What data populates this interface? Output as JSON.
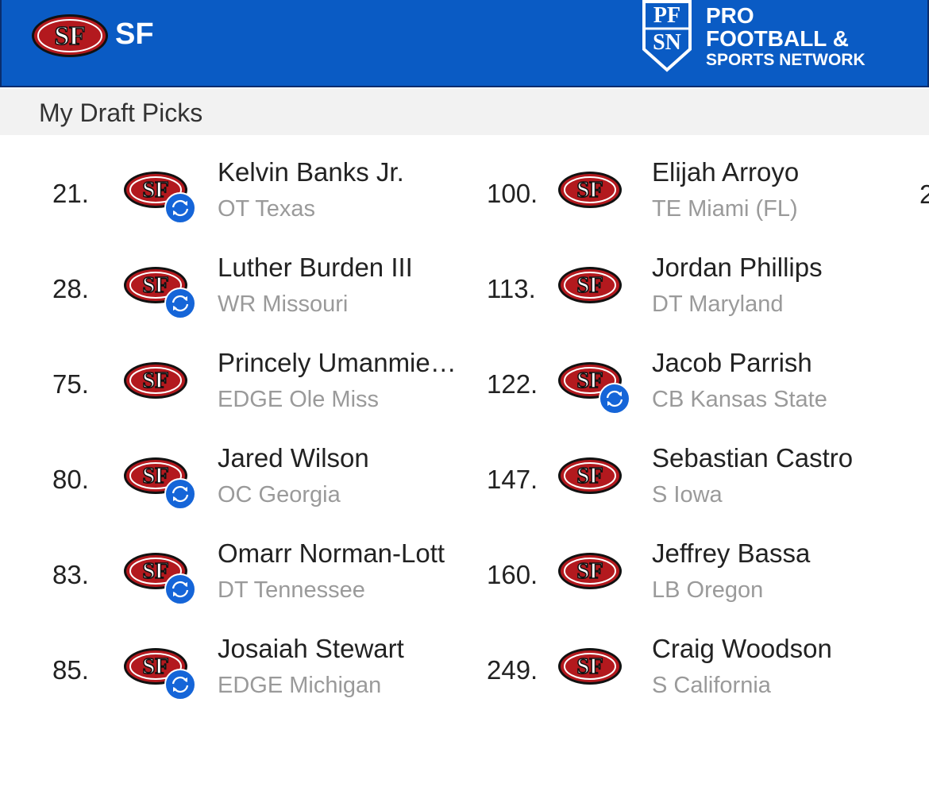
{
  "header": {
    "team": "SF",
    "logo_text": "SF",
    "brand": {
      "logo": [
        "PF",
        "SN"
      ],
      "lines": [
        "PRO",
        "FOOTBALL &",
        "SPORTS NETWORK"
      ]
    }
  },
  "section_title": "My Draft Picks",
  "columns": [
    [
      {
        "pick": "21.",
        "name": "Kelvin Banks Jr.",
        "detail": "OT Texas",
        "traded": true
      },
      {
        "pick": "28.",
        "name": "Luther Burden III",
        "detail": "WR Missouri",
        "traded": true
      },
      {
        "pick": "75.",
        "name": "Princely Umanmie…",
        "detail": "EDGE Ole Miss",
        "traded": false
      },
      {
        "pick": "80.",
        "name": "Jared Wilson",
        "detail": "OC Georgia",
        "traded": true
      },
      {
        "pick": "83.",
        "name": "Omarr Norman-Lott",
        "detail": "DT Tennessee",
        "traded": true
      },
      {
        "pick": "85.",
        "name": "Josaiah Stewart",
        "detail": "EDGE Michigan",
        "traded": true
      }
    ],
    [
      {
        "pick": "100.",
        "name": "Elijah Arroyo",
        "detail": "TE Miami (FL)",
        "traded": false
      },
      {
        "pick": "113.",
        "name": "Jordan Phillips",
        "detail": "DT Maryland",
        "traded": false
      },
      {
        "pick": "122.",
        "name": "Jacob Parrish",
        "detail": "CB Kansas State",
        "traded": true
      },
      {
        "pick": "147.",
        "name": "Sebastian Castro",
        "detail": "S Iowa",
        "traded": false
      },
      {
        "pick": "160.",
        "name": "Jeffrey Bassa",
        "detail": "LB Oregon",
        "traded": false
      },
      {
        "pick": "249.",
        "name": "Craig Woodson",
        "detail": "S California",
        "traded": false
      }
    ]
  ],
  "partial_pick": "2"
}
